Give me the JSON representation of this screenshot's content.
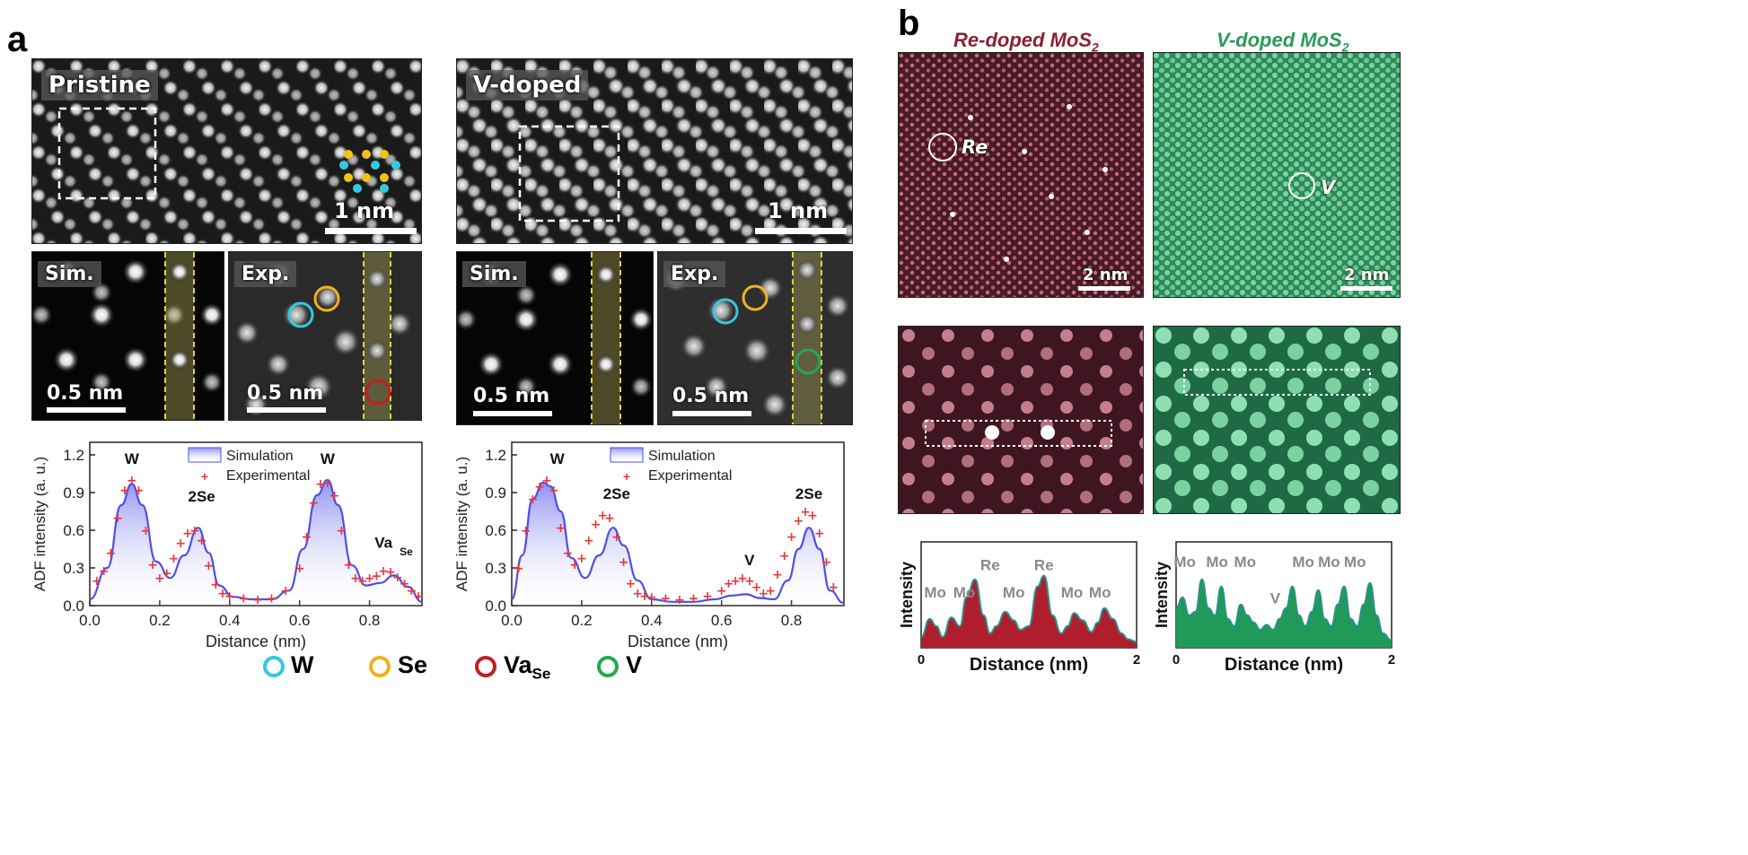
{
  "panel_a": {
    "letter": "a",
    "pristine": {
      "label": "Pristine",
      "scale": "1 nm",
      "sim_label": "Sim.",
      "exp_label": "Exp.",
      "sim_scale": "0.5 nm",
      "exp_scale": "0.5 nm"
    },
    "vdoped": {
      "label": "V-doped",
      "scale": "1 nm",
      "sim_label": "Sim.",
      "exp_label": "Exp.",
      "sim_scale": "0.5 nm",
      "exp_scale": "0.5 nm"
    },
    "legend": {
      "w": "W",
      "se": "Se",
      "va": "Va",
      "va_sub": "Se",
      "v": "V",
      "colors": {
        "w": "#35c8e0",
        "se": "#f0b21a",
        "va": "#c0201e",
        "v": "#1faa52"
      }
    }
  },
  "panel_b": {
    "letter": "b",
    "re_title": "Re-doped MoS",
    "re_sub": "2",
    "v_title": "V-doped MoS",
    "v_sub": "2",
    "re_label": "Re",
    "v_label": "V",
    "re_scale": "2 nm",
    "v_scale": "2 nm",
    "re_color": "#8a1f35",
    "v_color": "#2a9a5a"
  },
  "chart_data": [
    {
      "type": "area",
      "id": "a-pristine-profile",
      "xlabel": "Distance (nm)",
      "ylabel": "ADF intensity (a. u.)",
      "xlim": [
        0.0,
        0.95
      ],
      "ylim": [
        0.0,
        1.3
      ],
      "xticks": [
        "0.0",
        "0.2",
        "0.4",
        "0.6",
        "0.8"
      ],
      "yticks": [
        "0.0",
        "0.3",
        "0.6",
        "0.9",
        "1.2"
      ],
      "legend": [
        "Simulation",
        "Experimental"
      ],
      "series": [
        {
          "name": "Simulation",
          "x": [
            0.0,
            0.05,
            0.09,
            0.12,
            0.15,
            0.19,
            0.23,
            0.27,
            0.31,
            0.34,
            0.37,
            0.41,
            0.46,
            0.52,
            0.57,
            0.61,
            0.65,
            0.68,
            0.71,
            0.75,
            0.79,
            0.83,
            0.87,
            0.91,
            0.95
          ],
          "y": [
            0.05,
            0.3,
            0.8,
            0.97,
            0.8,
            0.35,
            0.22,
            0.4,
            0.62,
            0.42,
            0.16,
            0.07,
            0.05,
            0.05,
            0.12,
            0.45,
            0.88,
            1.0,
            0.8,
            0.32,
            0.16,
            0.18,
            0.24,
            0.15,
            0.03
          ]
        },
        {
          "name": "Experimental",
          "x": [
            0.02,
            0.04,
            0.06,
            0.08,
            0.1,
            0.12,
            0.14,
            0.16,
            0.18,
            0.2,
            0.22,
            0.24,
            0.26,
            0.28,
            0.3,
            0.32,
            0.34,
            0.36,
            0.38,
            0.4,
            0.44,
            0.48,
            0.52,
            0.56,
            0.6,
            0.62,
            0.64,
            0.66,
            0.68,
            0.7,
            0.72,
            0.74,
            0.76,
            0.78,
            0.8,
            0.82,
            0.84,
            0.86,
            0.88,
            0.9,
            0.92,
            0.94
          ],
          "y": [
            0.2,
            0.28,
            0.42,
            0.7,
            0.92,
            1.0,
            0.92,
            0.6,
            0.33,
            0.22,
            0.26,
            0.38,
            0.5,
            0.58,
            0.6,
            0.52,
            0.32,
            0.17,
            0.1,
            0.08,
            0.06,
            0.05,
            0.06,
            0.12,
            0.3,
            0.55,
            0.82,
            0.97,
            0.98,
            0.88,
            0.6,
            0.33,
            0.22,
            0.2,
            0.22,
            0.24,
            0.28,
            0.27,
            0.23,
            0.18,
            0.12,
            0.08
          ]
        }
      ],
      "annotations": [
        "W",
        "2Se",
        "W",
        "Va",
        "Se"
      ]
    },
    {
      "type": "area",
      "id": "a-vdoped-profile",
      "xlabel": "Distance (nm)",
      "ylabel": "ADF intensity (a. u.)",
      "xlim": [
        0.0,
        0.95
      ],
      "ylim": [
        0.0,
        1.3
      ],
      "xticks": [
        "0.0",
        "0.2",
        "0.4",
        "0.6",
        "0.8"
      ],
      "yticks": [
        "0.0",
        "0.3",
        "0.6",
        "0.9",
        "1.2"
      ],
      "legend": [
        "Simulation",
        "Experimental"
      ],
      "series": [
        {
          "name": "Simulation",
          "x": [
            0.0,
            0.03,
            0.06,
            0.09,
            0.11,
            0.14,
            0.17,
            0.21,
            0.25,
            0.29,
            0.32,
            0.36,
            0.4,
            0.46,
            0.52,
            0.58,
            0.63,
            0.67,
            0.71,
            0.75,
            0.79,
            0.82,
            0.85,
            0.88,
            0.91,
            0.95
          ],
          "y": [
            0.05,
            0.4,
            0.85,
            0.98,
            0.95,
            0.75,
            0.38,
            0.22,
            0.4,
            0.62,
            0.48,
            0.2,
            0.05,
            0.03,
            0.03,
            0.05,
            0.08,
            0.09,
            0.06,
            0.05,
            0.2,
            0.45,
            0.62,
            0.45,
            0.12,
            0.02
          ]
        },
        {
          "name": "Experimental",
          "x": [
            0.02,
            0.04,
            0.06,
            0.08,
            0.1,
            0.12,
            0.14,
            0.16,
            0.18,
            0.2,
            0.22,
            0.24,
            0.26,
            0.28,
            0.3,
            0.32,
            0.34,
            0.36,
            0.38,
            0.4,
            0.44,
            0.48,
            0.52,
            0.56,
            0.6,
            0.62,
            0.64,
            0.66,
            0.68,
            0.7,
            0.72,
            0.74,
            0.76,
            0.78,
            0.8,
            0.82,
            0.84,
            0.86,
            0.88,
            0.9,
            0.92
          ],
          "y": [
            0.3,
            0.6,
            0.85,
            0.95,
            1.0,
            0.92,
            0.62,
            0.42,
            0.33,
            0.38,
            0.52,
            0.65,
            0.72,
            0.7,
            0.55,
            0.35,
            0.18,
            0.1,
            0.08,
            0.07,
            0.06,
            0.05,
            0.06,
            0.08,
            0.12,
            0.18,
            0.2,
            0.22,
            0.2,
            0.15,
            0.1,
            0.12,
            0.25,
            0.4,
            0.55,
            0.68,
            0.75,
            0.72,
            0.58,
            0.35,
            0.15
          ]
        }
      ],
      "annotations": [
        "W",
        "2Se",
        "V",
        "2Se"
      ]
    },
    {
      "type": "area",
      "id": "b-re-profile",
      "xlabel": "Distance (nm)",
      "ylabel": "Intensity",
      "xlim": [
        0,
        2
      ],
      "xticks": [
        "0",
        "2"
      ],
      "series": [
        {
          "name": "Re-doped intensity",
          "x": [
            0.0,
            0.08,
            0.14,
            0.2,
            0.28,
            0.36,
            0.42,
            0.5,
            0.58,
            0.64,
            0.7,
            0.78,
            0.86,
            0.92,
            1.0,
            1.08,
            1.14,
            1.22,
            1.3,
            1.36,
            1.42,
            1.5,
            1.58,
            1.64,
            1.7,
            1.78,
            1.86,
            1.92,
            2.0
          ],
          "y": [
            0.15,
            0.4,
            0.3,
            0.15,
            0.42,
            0.3,
            0.7,
            0.95,
            0.45,
            0.2,
            0.3,
            0.5,
            0.38,
            0.25,
            0.3,
            0.85,
            1.0,
            0.45,
            0.2,
            0.3,
            0.48,
            0.38,
            0.22,
            0.35,
            0.55,
            0.4,
            0.2,
            0.12,
            0.08
          ]
        }
      ],
      "annotations": [
        "Mo",
        "Mo",
        "Re",
        "Mo",
        "Re",
        "Mo",
        "Mo"
      ]
    },
    {
      "type": "area",
      "id": "b-v-profile",
      "xlabel": "Distance (nm)",
      "ylabel": "Intensity",
      "xlim": [
        0,
        2
      ],
      "xticks": [
        "0",
        "2"
      ],
      "series": [
        {
          "name": "V-doped intensity",
          "x": [
            0.0,
            0.06,
            0.12,
            0.18,
            0.24,
            0.3,
            0.36,
            0.42,
            0.48,
            0.54,
            0.6,
            0.66,
            0.72,
            0.78,
            0.84,
            0.9,
            0.96,
            1.02,
            1.08,
            1.14,
            1.2,
            1.26,
            1.32,
            1.38,
            1.44,
            1.5,
            1.56,
            1.62,
            1.68,
            1.74,
            1.8,
            1.86,
            1.92,
            2.0
          ],
          "y": [
            0.55,
            0.7,
            0.45,
            0.5,
            0.95,
            0.55,
            0.45,
            0.85,
            0.4,
            0.3,
            0.6,
            0.45,
            0.35,
            0.25,
            0.32,
            0.25,
            0.4,
            0.55,
            0.85,
            0.45,
            0.3,
            0.5,
            0.8,
            0.4,
            0.3,
            0.6,
            0.85,
            0.4,
            0.3,
            0.6,
            0.9,
            0.45,
            0.2,
            0.1
          ]
        }
      ],
      "annotations": [
        "Mo",
        "Mo",
        "Mo",
        "V",
        "Mo",
        "Mo",
        "Mo"
      ]
    }
  ]
}
